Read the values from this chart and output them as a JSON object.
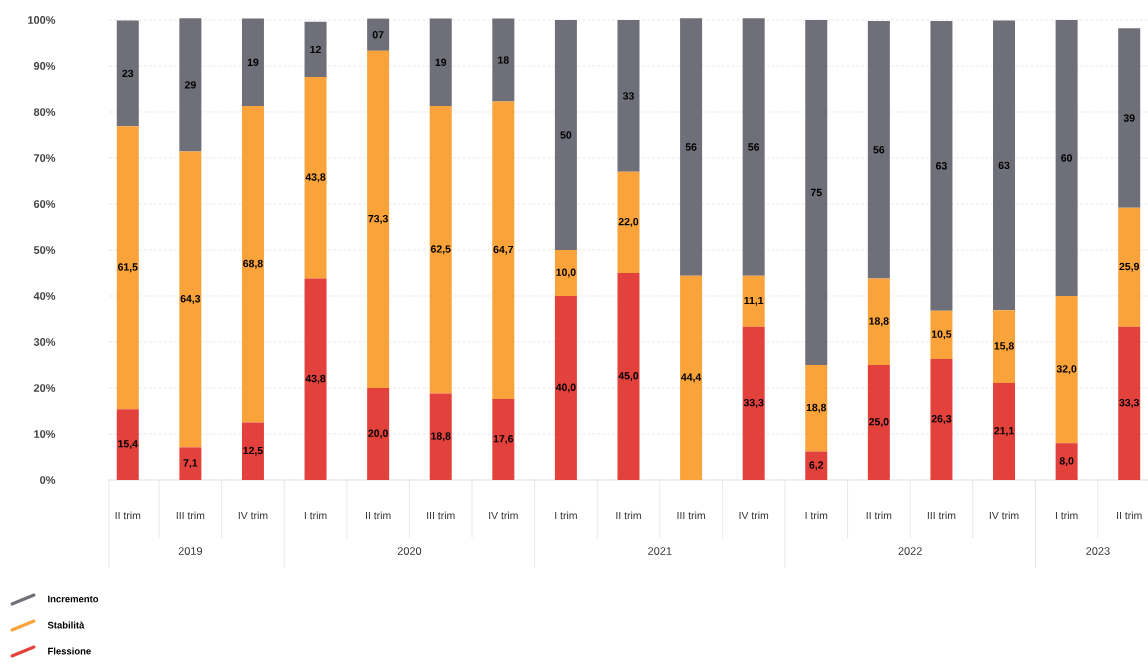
{
  "chart_data": {
    "type": "bar",
    "stacked": true,
    "categories": [
      "II trim",
      "III trim",
      "IV trim",
      "I trim",
      "II trim",
      "III trim",
      "IV trim",
      "I trim",
      "II trim",
      "III trim",
      "IV trim",
      "I trim",
      "II trim",
      "III trim",
      "IV trim",
      "I trim",
      "II trim"
    ],
    "series": [
      {
        "name": "Flessione",
        "color": "#e3413b",
        "values": [
          15.4,
          7.1,
          12.5,
          43.8,
          20.0,
          18.8,
          17.6,
          40.0,
          45.0,
          0,
          33.3,
          6.2,
          25.0,
          26.3,
          21.1,
          8.0,
          33.3
        ],
        "value_labels": [
          "15,4",
          "7,1",
          "12,5",
          "43,8",
          "20,0",
          "18,8",
          "17,6",
          "40,0",
          "45,0",
          null,
          "33,3",
          "6,2",
          "25,0",
          "26,3",
          "21,1",
          "8,0",
          "33,3"
        ]
      },
      {
        "name": "Stabilità",
        "color": "#f9a33a",
        "values": [
          61.5,
          64.3,
          68.8,
          43.8,
          73.3,
          62.5,
          64.7,
          10.0,
          22.0,
          44.4,
          11.1,
          18.8,
          18.8,
          10.5,
          15.8,
          32.0,
          25.9
        ],
        "value_labels": [
          "61,5",
          "64,3",
          "68,8",
          "43,8",
          "73,3",
          "62,5",
          "64,7",
          "10,0",
          "22,0",
          "44,4",
          "11,1",
          "18,8",
          "18,8",
          "10,5",
          "15,8",
          "32,0",
          "25,9"
        ]
      },
      {
        "name": "Incremento",
        "color": "#6e6f78",
        "values": [
          23,
          29,
          19,
          12,
          7,
          19,
          18,
          50,
          33,
          56,
          56,
          75,
          56,
          63,
          63,
          60,
          39
        ],
        "value_labels": [
          "23",
          "29",
          "19",
          "12",
          "07",
          "19",
          "18",
          "50",
          "33",
          "56",
          "56",
          "75",
          "56",
          "63",
          "63",
          "60",
          "39"
        ]
      }
    ],
    "ylim": [
      0,
      100
    ],
    "yticks": [
      {
        "value": 0,
        "label": "0%"
      },
      {
        "value": 10,
        "label": "10%"
      },
      {
        "value": 20,
        "label": "20%"
      },
      {
        "value": 30,
        "label": "30%"
      },
      {
        "value": 40,
        "label": "40%"
      },
      {
        "value": 50,
        "label": "50%"
      },
      {
        "value": 60,
        "label": "60%"
      },
      {
        "value": 70,
        "label": "70%"
      },
      {
        "value": 80,
        "label": "80%"
      },
      {
        "value": 90,
        "label": "90%"
      },
      {
        "value": 100,
        "label": "100%"
      }
    ],
    "grid": "y",
    "legend": "bottom left",
    "annotations": [
      "2019",
      "2020",
      "2021",
      "2022",
      "2023"
    ]
  }
}
